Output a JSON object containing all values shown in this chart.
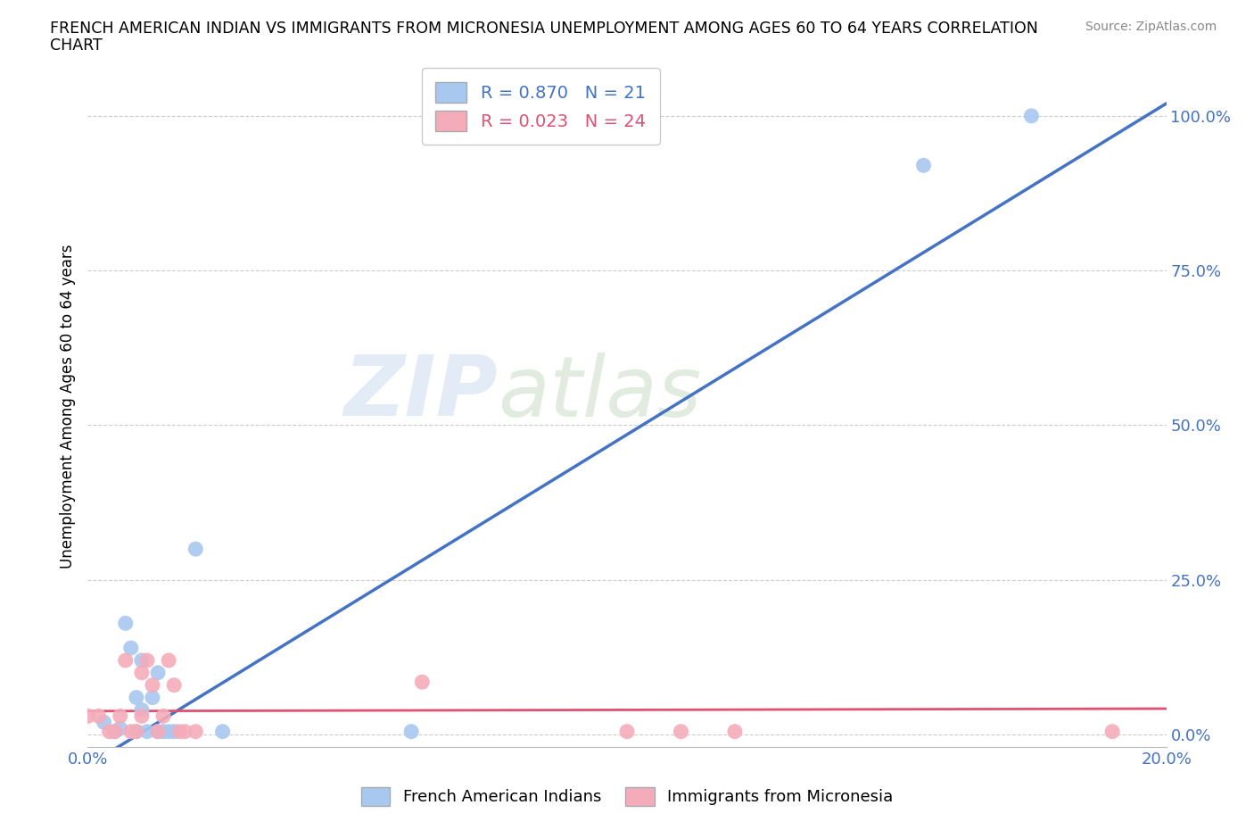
{
  "title_line1": "FRENCH AMERICAN INDIAN VS IMMIGRANTS FROM MICRONESIA UNEMPLOYMENT AMONG AGES 60 TO 64 YEARS CORRELATION",
  "title_line2": "CHART",
  "source": "Source: ZipAtlas.com",
  "ylabel": "Unemployment Among Ages 60 to 64 years",
  "xlim": [
    0.0,
    0.2
  ],
  "ylim": [
    -0.02,
    1.08
  ],
  "yticks": [
    0.0,
    0.25,
    0.5,
    0.75,
    1.0
  ],
  "ytick_labels": [
    "0.0%",
    "25.0%",
    "50.0%",
    "75.0%",
    "100.0%"
  ],
  "xticks": [
    0.0,
    0.05,
    0.1,
    0.15,
    0.2
  ],
  "xtick_labels": [
    "0.0%",
    "",
    "",
    "",
    "20.0%"
  ],
  "blue_R": 0.87,
  "blue_N": 21,
  "pink_R": 0.023,
  "pink_N": 24,
  "blue_color": "#A8C8F0",
  "pink_color": "#F4ACBA",
  "blue_line_color": "#4472C4",
  "pink_line_color": "#E05070",
  "watermark_zip": "ZIP",
  "watermark_atlas": "atlas",
  "blue_scatter_x": [
    0.003,
    0.005,
    0.006,
    0.007,
    0.008,
    0.009,
    0.009,
    0.01,
    0.01,
    0.011,
    0.012,
    0.013,
    0.013,
    0.014,
    0.015,
    0.016,
    0.02,
    0.025,
    0.06,
    0.155,
    0.175
  ],
  "blue_scatter_y": [
    0.02,
    0.005,
    0.01,
    0.18,
    0.14,
    0.005,
    0.06,
    0.04,
    0.12,
    0.005,
    0.06,
    0.005,
    0.1,
    0.005,
    0.005,
    0.005,
    0.3,
    0.005,
    0.005,
    0.92,
    1.0
  ],
  "pink_scatter_x": [
    0.0,
    0.002,
    0.004,
    0.005,
    0.006,
    0.007,
    0.008,
    0.009,
    0.01,
    0.01,
    0.011,
    0.012,
    0.013,
    0.014,
    0.015,
    0.016,
    0.017,
    0.018,
    0.02,
    0.062,
    0.1,
    0.11,
    0.12,
    0.19
  ],
  "pink_scatter_y": [
    0.03,
    0.03,
    0.005,
    0.005,
    0.03,
    0.12,
    0.005,
    0.005,
    0.03,
    0.1,
    0.12,
    0.08,
    0.005,
    0.03,
    0.12,
    0.08,
    0.005,
    0.005,
    0.005,
    0.085,
    0.005,
    0.005,
    0.005,
    0.005
  ],
  "blue_line_x": [
    0.0,
    0.2
  ],
  "blue_line_y": [
    -0.05,
    1.02
  ],
  "pink_line_x": [
    0.0,
    0.2
  ],
  "pink_line_y": [
    0.038,
    0.042
  ],
  "background_color": "#FFFFFF",
  "grid_color": "#CCCCCC",
  "tick_color": "#4472C4"
}
